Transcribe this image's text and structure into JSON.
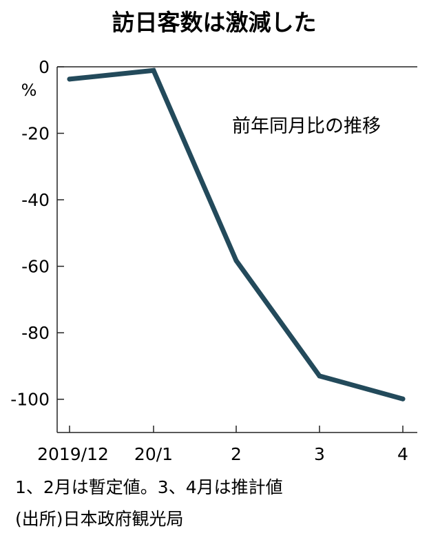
{
  "chart_data": {
    "type": "line",
    "title": "訪日客数は激減した",
    "ylabel": "%",
    "annotation": "前年同月比の推移",
    "categories": [
      "2019/12",
      "20/1",
      "2",
      "3",
      "4"
    ],
    "series": [
      {
        "values": [
          -3.7,
          -1.1,
          -58.3,
          -93.0,
          -99.9
        ]
      }
    ],
    "yticks": [
      0,
      -20,
      -40,
      -60,
      -80,
      -100
    ],
    "ylim": [
      -110,
      0
    ],
    "grid": false,
    "line_color": "#234a5b",
    "axis_color": "#222222"
  },
  "footnotes": {
    "note": "1、2月は暫定値。3、4月は推計値",
    "source": "(出所)日本政府観光局"
  }
}
